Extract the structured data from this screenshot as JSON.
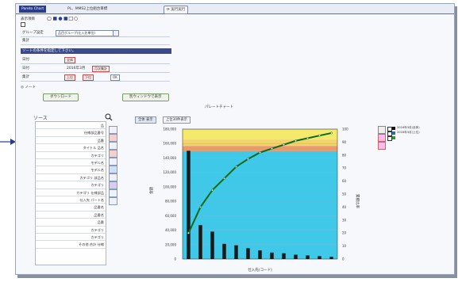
{
  "tabs": {
    "tab1": "Pareto Chart",
    "tab2": "PL、MMS2上位組合目標",
    "tab3": "実行実行"
  },
  "form": {
    "row1": "表示項目",
    "row2_label": "グループ設定",
    "row2_select": "品目グループ(仕入先単位)",
    "row3_label": "集計",
    "row4_label": "日付",
    "row5_label": "集計",
    "chip_a": "全体",
    "chip_b": "月次集計",
    "chip_c": "年集計",
    "chip_d": "上位",
    "chip_e": "下位",
    "btn_ok": "OK",
    "banner": "ソートの条件を指定して下さい。",
    "date_text": "2016年3月"
  },
  "actions": {
    "download": "ダウンロード",
    "new_window": "別ウィンドウで表示",
    "note": "ノート"
  },
  "chart_title": "パレートチャート",
  "subtabs": [
    "全体 表示",
    "上位30件表示"
  ],
  "list_header": "ソース",
  "list_items": [
    "品",
    "仕様部品番号",
    "品番",
    "タイトル 品名",
    "カテゴリ",
    "モデル名",
    "モデル名",
    "カテゴリ 部品名",
    "カテゴリ",
    "カテゴリ 仕様部品",
    "仕入先 パート名",
    "品番名",
    "品番名",
    "品番",
    "カテゴリ",
    "カテゴリ",
    "その他 合計 仕様"
  ],
  "legend": [
    "2016年3月(全体)",
    "2016年3月(上位)",
    "累計比率"
  ],
  "x_axis_label": "仕入先(コード)",
  "y_left_label": "金額",
  "y_right_label": "累積比率",
  "colors": {
    "bar": "#1a1a1a",
    "line": "#0a6a1a",
    "band_yellow": "#f4e96a",
    "band_orange": "#e89a6a",
    "band_cyan": "#40c8e8"
  },
  "chart_data": {
    "type": "bar",
    "categories": [
      "1",
      "2",
      "3",
      "4",
      "5",
      "6",
      "7",
      "8",
      "9",
      "10",
      "11",
      "12",
      "13"
    ],
    "series": [
      {
        "name": "2016年3月(全体)",
        "values": [
          150,
          47,
          38,
          21,
          19,
          15,
          12,
          9,
          8,
          6,
          5,
          4,
          3
        ]
      },
      {
        "name": "累計比率",
        "values": [
          20,
          40,
          53,
          62,
          71,
          77,
          82,
          85,
          88,
          91,
          93,
          95,
          97
        ]
      }
    ],
    "y_ticks_left": [
      "180,000",
      "160,000",
      "140,000",
      "120,000",
      "100,000",
      "80,000",
      "60,000",
      "40,000",
      "20,000",
      "0"
    ],
    "y_ticks_right": [
      "100",
      "90",
      "80",
      "70",
      "60",
      "50",
      "40",
      "30",
      "20",
      "10",
      "0"
    ],
    "ylim": [
      0,
      180
    ],
    "y2lim": [
      0,
      100
    ]
  }
}
